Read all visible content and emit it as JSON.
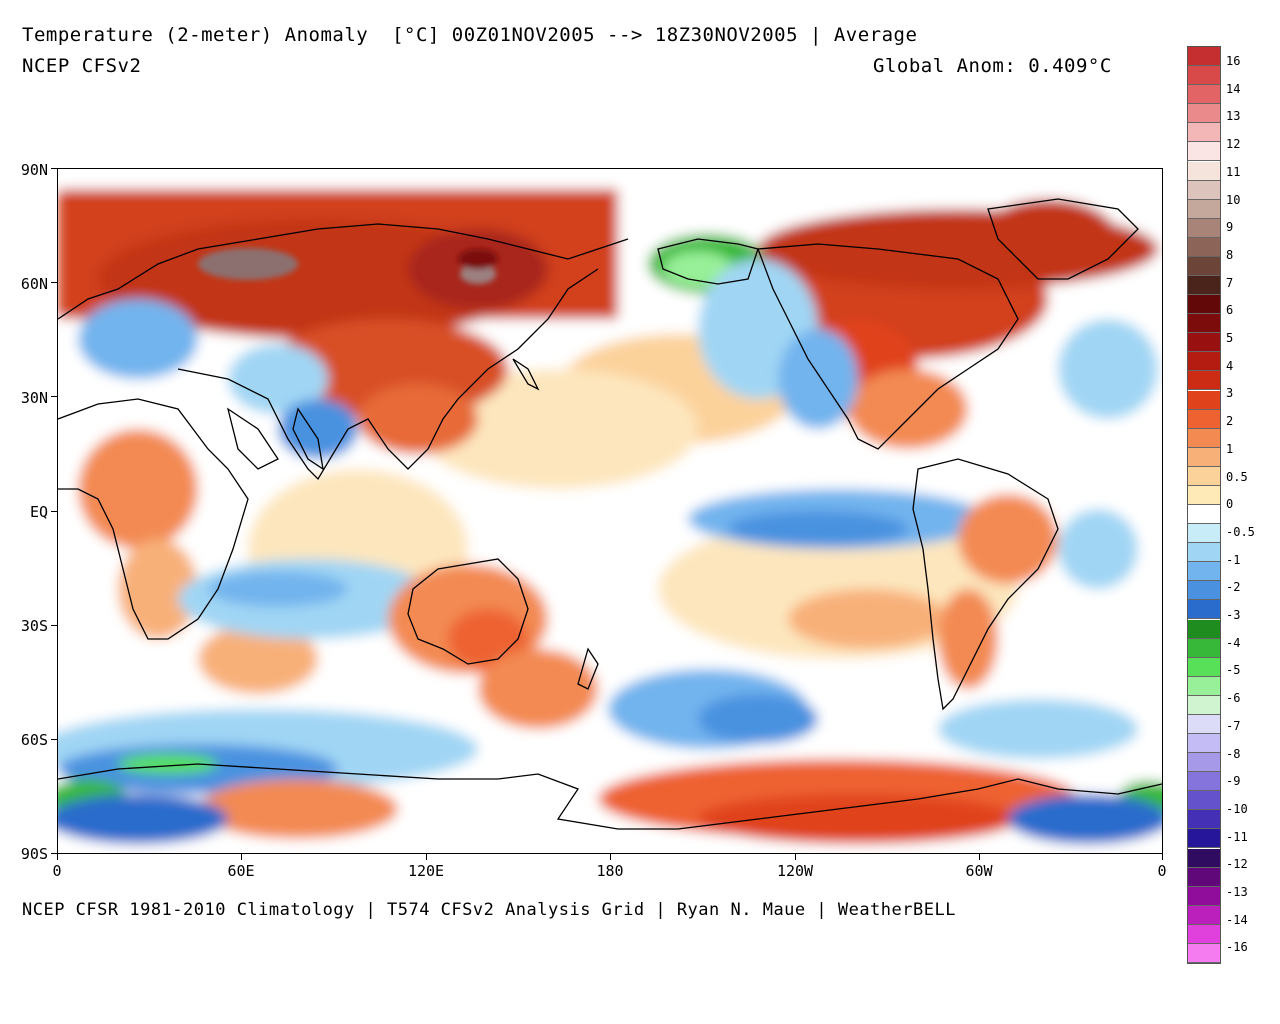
{
  "header": {
    "title": "Temperature (2-meter) Anomaly  [°C] 00Z01NOV2005 --> 18Z30NOV2005 | Average",
    "model": "NCEP CFSv2",
    "global_anom": "Global Anom: 0.409°C"
  },
  "footer": "NCEP CFSR 1981-2010 Climatology | T574 CFSv2 Analysis Grid | Ryan N. Maue | WeatherBELL",
  "axes": {
    "lat_labels": [
      "90N",
      "60N",
      "30N",
      "EQ",
      "30S",
      "60S",
      "90S"
    ],
    "lon_labels": [
      "0",
      "60E",
      "120E",
      "180",
      "120W",
      "60W",
      "0"
    ]
  },
  "colorbar": {
    "labels": [
      "16",
      "14",
      "13",
      "12",
      "11",
      "10",
      "9",
      "8",
      "7",
      "6",
      "5",
      "4",
      "3",
      "2",
      "1",
      "0.5",
      "0",
      "-0.5",
      "-1",
      "-2",
      "-3",
      "-4",
      "-5",
      "-6",
      "-7",
      "-8",
      "-9",
      "-10",
      "-11",
      "-12",
      "-13",
      "-14",
      "-16"
    ],
    "colors": [
      "#c62f2f",
      "#d84a4a",
      "#e26464",
      "#ea8a8a",
      "#f3b7b7",
      "#fbe4e4",
      "#f4e4dc",
      "#dcc4bc",
      "#c4a89c",
      "#a88478",
      "#8c6458",
      "#6c4438",
      "#4a241a",
      "#620808",
      "#7c0c0c",
      "#981010",
      "#b41c12",
      "#cc2c14",
      "#e0431c",
      "#ee6232",
      "#f38a52",
      "#f8b079",
      "#fcd29b",
      "#fdeab6",
      "#ffffff",
      "#c8ecf8",
      "#a0d6f4",
      "#72b4ee",
      "#4a92e0",
      "#2a6ccc",
      "#1e8c1e",
      "#38b838",
      "#58e058",
      "#98f098",
      "#cff4cf",
      "#dcdcf8",
      "#c4bcf4",
      "#a69ae8",
      "#8474dc",
      "#6452cc",
      "#4430b4",
      "#26169a",
      "#300c60",
      "#60087a",
      "#900c9a",
      "#bc20bc",
      "#e040dc",
      "#f47cf0"
    ]
  },
  "colors": {
    "frame": "#000000",
    "ocean_neutral": "#ffffff",
    "warm_1": "#fcd29b",
    "warm_2": "#f38a52",
    "warm_3": "#d2401c",
    "warm_4": "#a8281a",
    "extreme_warm": "#8c7070",
    "cool_1": "#c8ecf8",
    "cool_2": "#72b4ee",
    "cool_3": "#2a6ccc",
    "green": "#38b838",
    "coast": "#000000"
  }
}
